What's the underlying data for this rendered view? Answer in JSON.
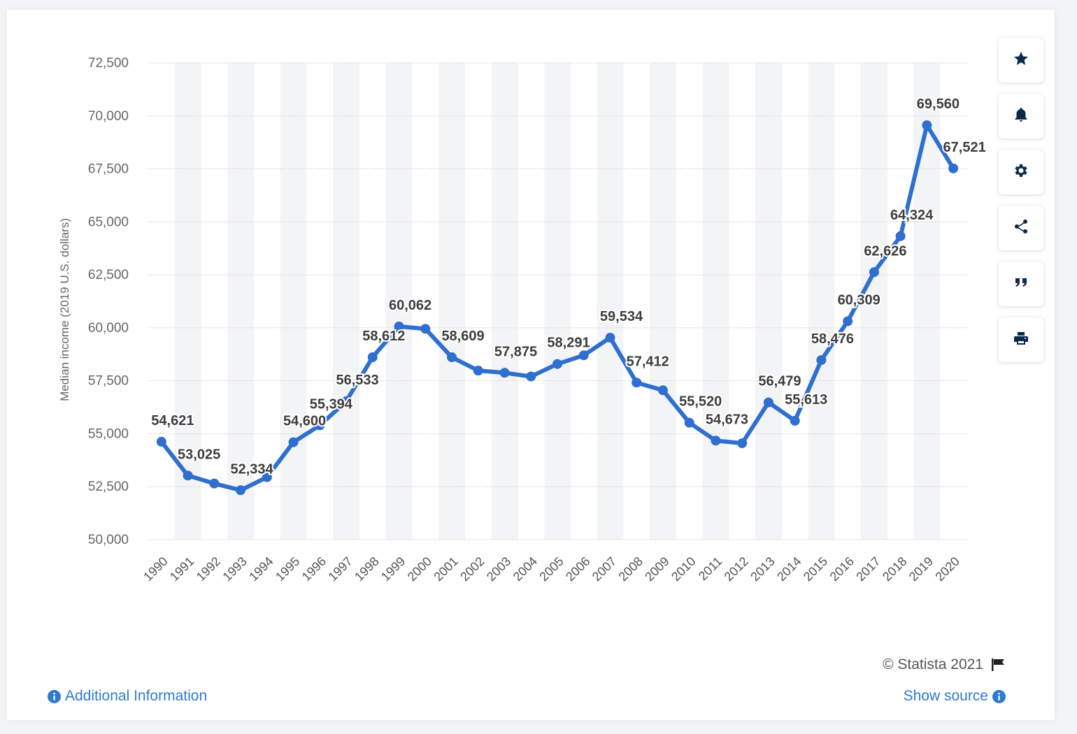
{
  "chart_data": {
    "type": "line",
    "ylabel": "Median income (2019 U.S. dollars)",
    "ylim": [
      50000,
      72500
    ],
    "yticks": [
      50000,
      52500,
      55000,
      57500,
      60000,
      62500,
      65000,
      67500,
      70000,
      72500
    ],
    "ytick_labels": [
      "50,000",
      "52,500",
      "55,000",
      "57,500",
      "60,000",
      "62,500",
      "65,000",
      "67,500",
      "70,000",
      "72,500"
    ],
    "grid": true,
    "series_color": "#2f6fd0",
    "x": [
      "1990",
      "1991",
      "1992",
      "1993",
      "1994",
      "1995",
      "1996",
      "1997",
      "1998",
      "1999",
      "2000",
      "2001",
      "2002",
      "2003",
      "2004",
      "2005",
      "2006",
      "2007",
      "2008",
      "2009",
      "2010",
      "2011",
      "2012",
      "2013",
      "2014",
      "2015",
      "2016",
      "2017",
      "2018",
      "2019",
      "2020"
    ],
    "values": [
      54621,
      53025,
      52650,
      52334,
      52950,
      54600,
      55394,
      56533,
      58612,
      60062,
      59950,
      58609,
      57980,
      57875,
      57700,
      58291,
      58700,
      59534,
      57412,
      57050,
      55520,
      54673,
      54550,
      56479,
      55613,
      58476,
      60309,
      62626,
      64324,
      69560,
      67521
    ],
    "data_labels": [
      "54,621",
      "53,025",
      "",
      "52,334",
      "",
      "54,600",
      "55,394",
      "56,533",
      "58,612",
      "60,062",
      "",
      "58,609",
      "",
      "57,875",
      "",
      "58,291",
      "",
      "59,534",
      "57,412",
      "",
      "55,520",
      "54,673",
      "",
      "56,479",
      "55,613",
      "58,476",
      "60,309",
      "62,626",
      "64,324",
      "69,560",
      "67,521"
    ]
  },
  "toolbar": {
    "buttons": [
      {
        "name": "favorite-button",
        "icon": "star-icon"
      },
      {
        "name": "notification-button",
        "icon": "bell-icon"
      },
      {
        "name": "settings-button",
        "icon": "gear-icon"
      },
      {
        "name": "share-button",
        "icon": "share-icon"
      },
      {
        "name": "cite-button",
        "icon": "quote-icon"
      },
      {
        "name": "print-button",
        "icon": "print-icon"
      }
    ]
  },
  "footer": {
    "additional_info": "Additional Information",
    "copyright": "© Statista 2021",
    "show_source": "Show source"
  }
}
